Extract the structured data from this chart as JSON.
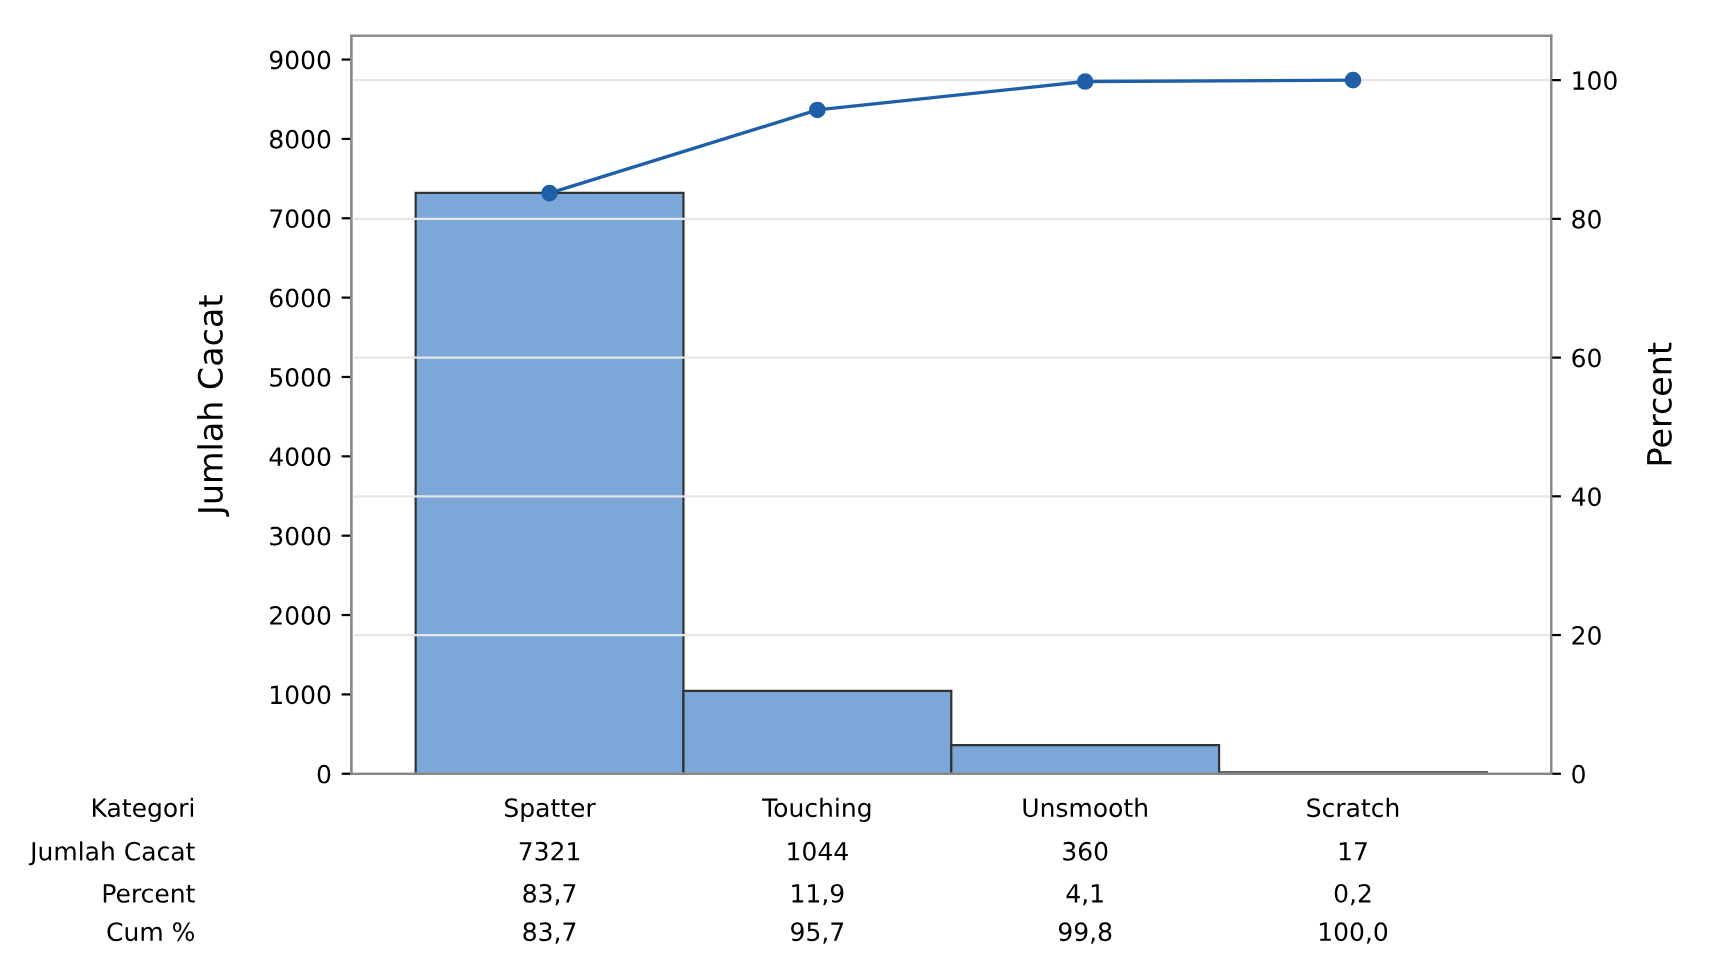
{
  "chart_data": {
    "type": "bar",
    "categories": [
      "Spatter",
      "Touching",
      "Unsmooth",
      "Scratch"
    ],
    "series": [
      {
        "color": "#7ba7d9",
        "values": [
          7321,
          1044,
          360,
          17
        ],
        "value_labels": [
          "7321",
          "1044",
          "360",
          "17"
        ]
      },
      {
        "type": "line",
        "axis": "y2",
        "color": "#1f5fa8",
        "marker": "circle",
        "values": [
          83.7,
          95.7,
          99.8,
          100.0
        ],
        "value_labels": [
          "83,7",
          "95,7",
          "99,8",
          "100,0"
        ]
      }
    ],
    "ylabel": "Jumlah Cacat",
    "y2label": "Percent",
    "ylim": [
      0,
      9300
    ],
    "yticks": [
      0,
      1000,
      2000,
      3000,
      4000,
      5000,
      6000,
      7000,
      8000,
      9000
    ],
    "y2lim": [
      0,
      106.4
    ],
    "y2ticks": [
      0,
      20,
      40,
      60,
      80,
      100
    ],
    "grid": "y",
    "annotations": [
      "Kategori",
      "Jumlah Cacat",
      "Percent",
      "Cum %",
      "83,7",
      "11,9",
      "4,1",
      "0,2"
    ]
  }
}
